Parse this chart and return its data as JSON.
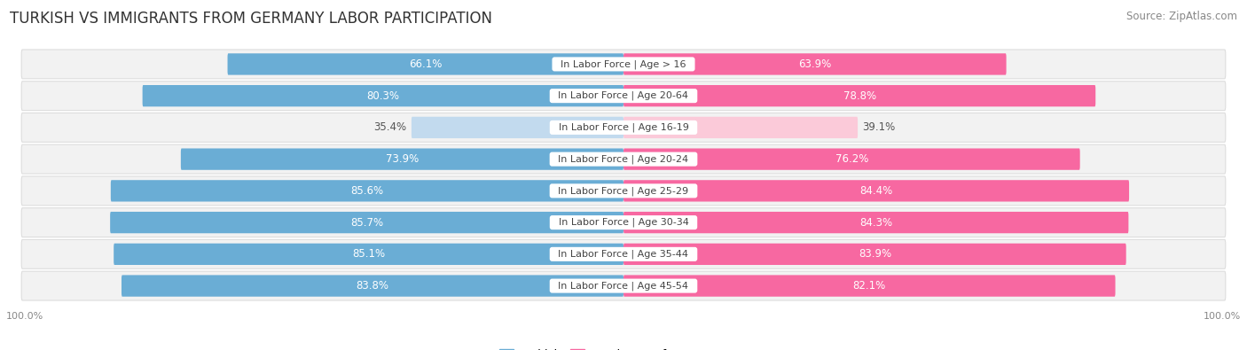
{
  "title": "TURKISH VS IMMIGRANTS FROM GERMANY LABOR PARTICIPATION",
  "source": "Source: ZipAtlas.com",
  "categories": [
    "In Labor Force | Age > 16",
    "In Labor Force | Age 20-64",
    "In Labor Force | Age 16-19",
    "In Labor Force | Age 20-24",
    "In Labor Force | Age 25-29",
    "In Labor Force | Age 30-34",
    "In Labor Force | Age 35-44",
    "In Labor Force | Age 45-54"
  ],
  "turkish_values": [
    66.1,
    80.3,
    35.4,
    73.9,
    85.6,
    85.7,
    85.1,
    83.8
  ],
  "germany_values": [
    63.9,
    78.8,
    39.1,
    76.2,
    84.4,
    84.3,
    83.9,
    82.1
  ],
  "turkish_color": "#6AADD5",
  "germany_color": "#F768A1",
  "turkish_color_light": "#C2DAEE",
  "germany_color_light": "#FBCAD9",
  "row_bg_color": "#F2F2F2",
  "row_border_color": "#DDDDDD",
  "title_fontsize": 12,
  "source_fontsize": 8.5,
  "value_fontsize": 8.5,
  "category_fontsize": 8,
  "legend_fontsize": 9.5,
  "axis_label_fontsize": 8,
  "background_color": "#FFFFFF",
  "max_value": 100.0
}
